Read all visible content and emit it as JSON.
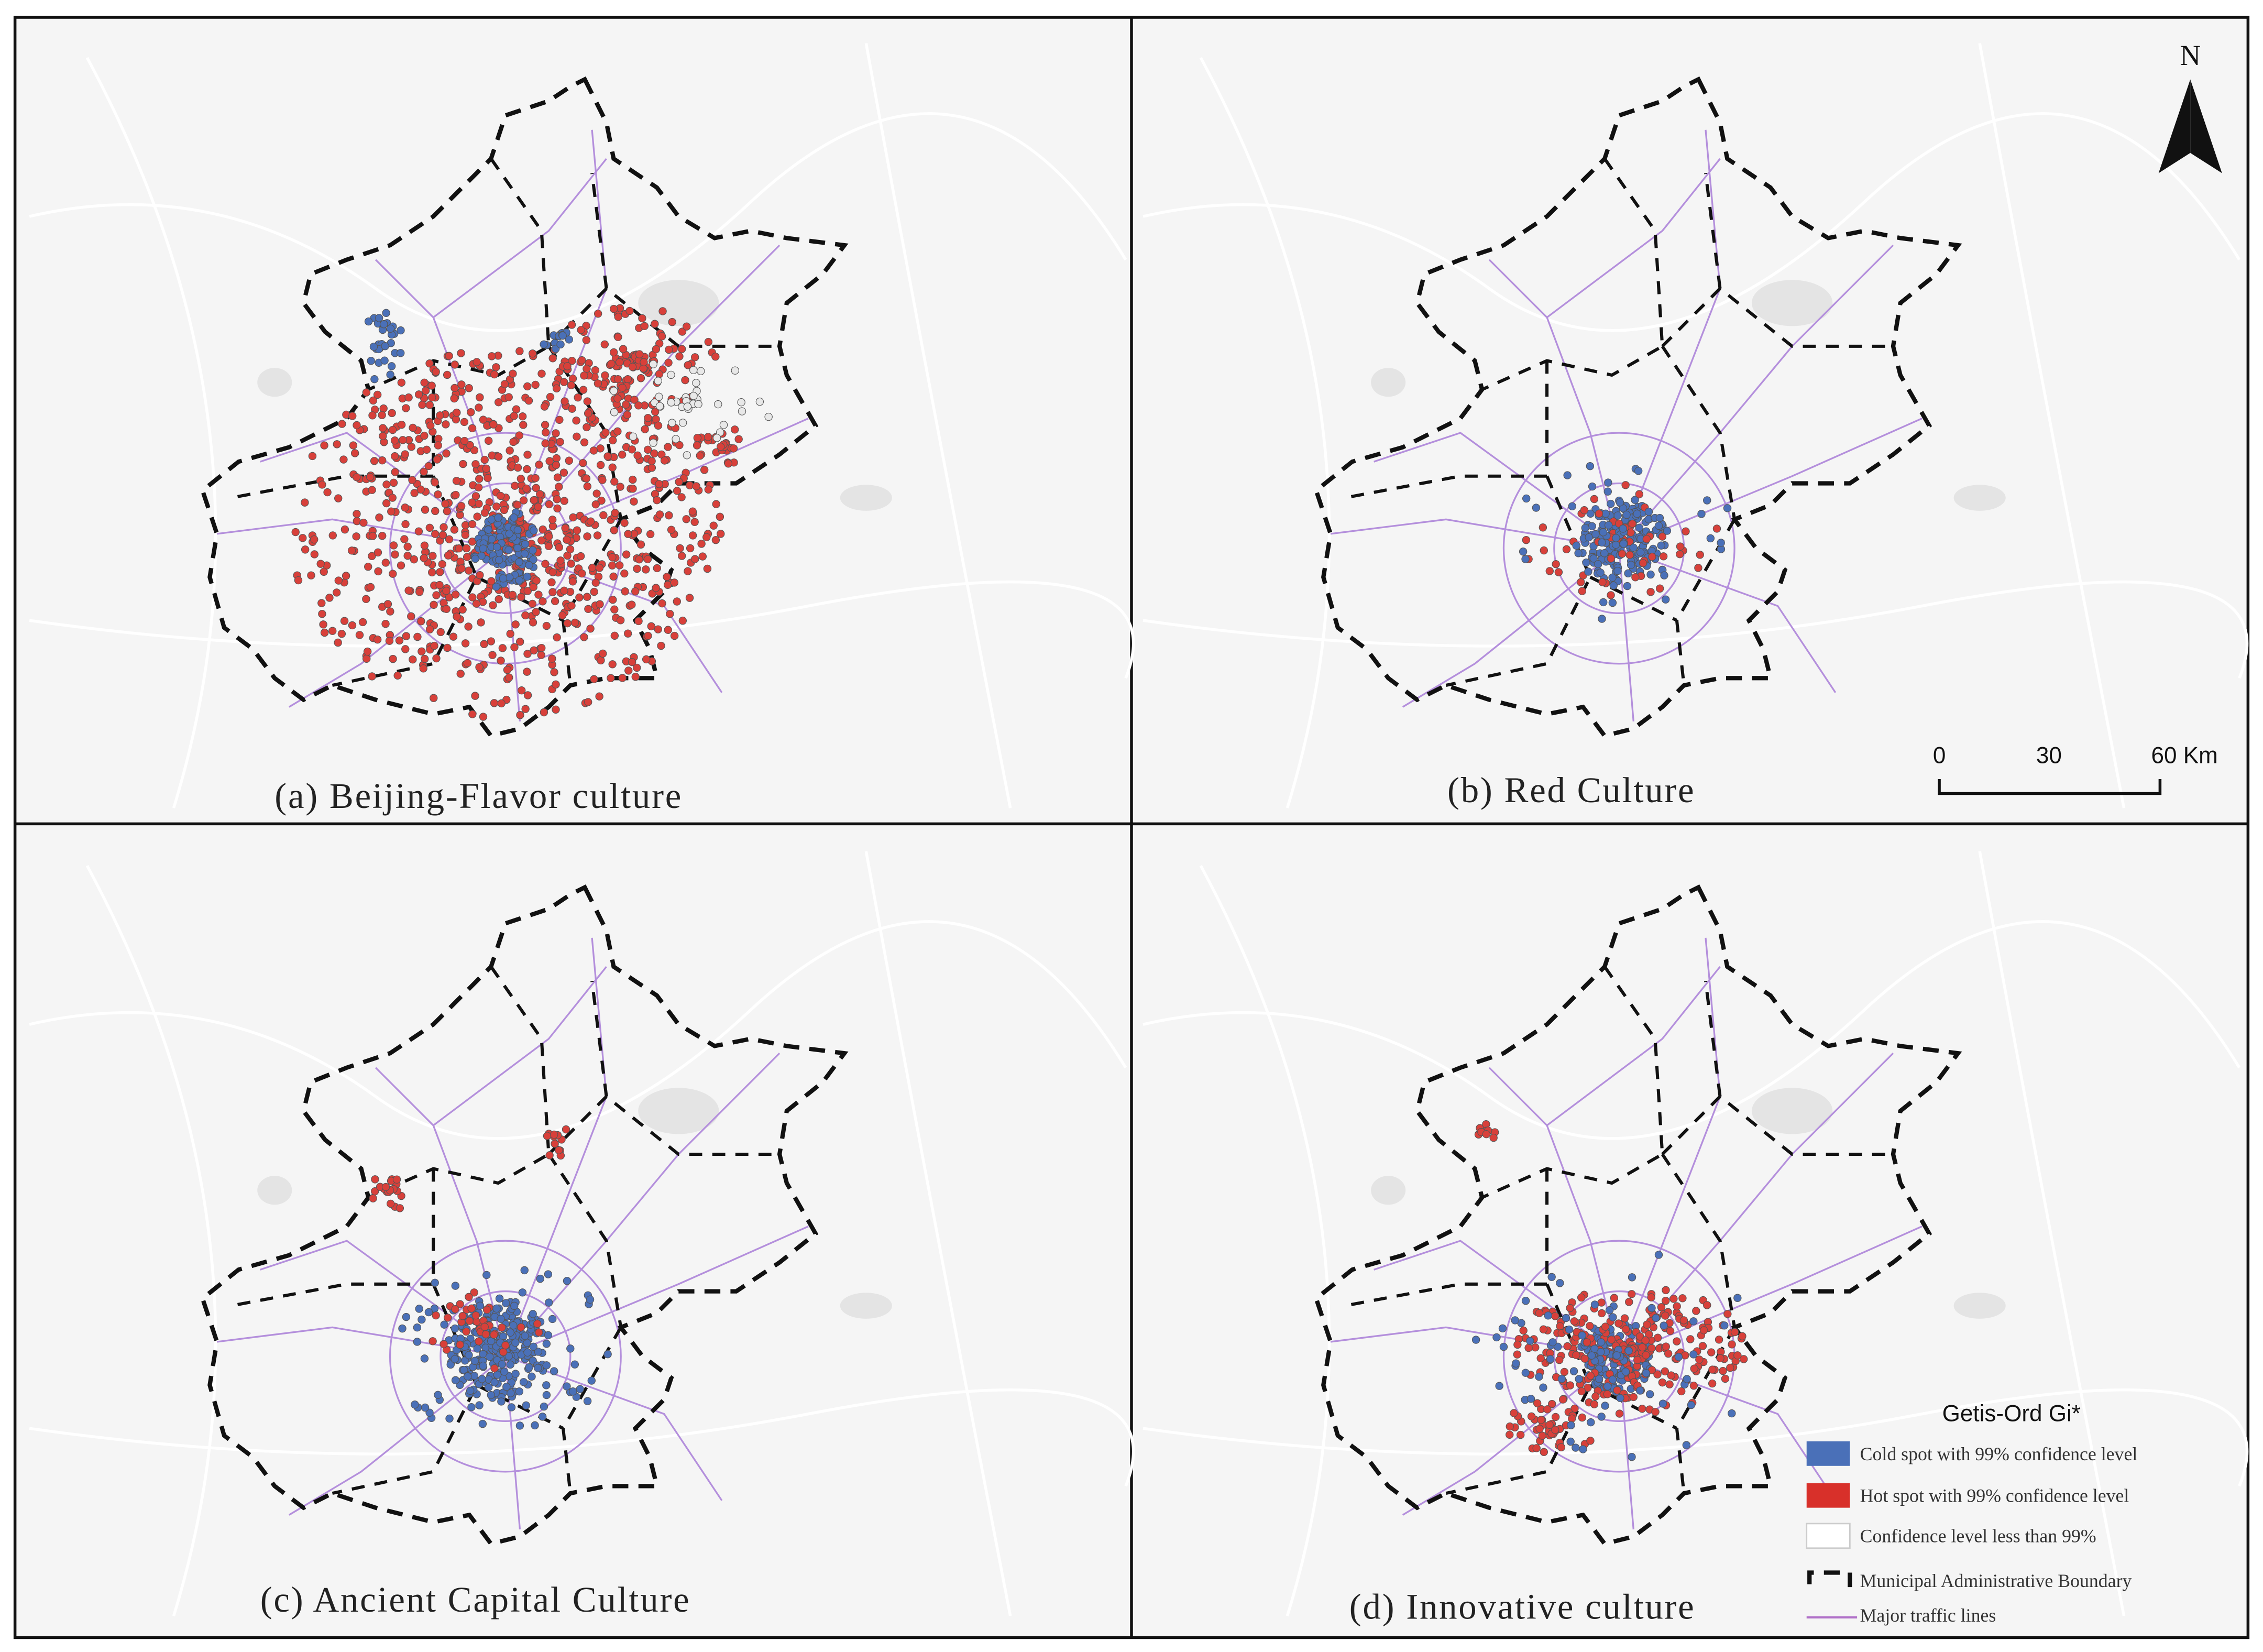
{
  "panels": [
    {
      "label": "(a) Beijing-Flavor culture"
    },
    {
      "label": "(b) Red Culture"
    },
    {
      "label": "(c) Ancient Capital Culture"
    },
    {
      "label": "(d) Innovative culture"
    }
  ],
  "north_arrow": {
    "label": "N"
  },
  "scale_bar": {
    "labels": [
      "0",
      "30",
      "60 Km"
    ]
  },
  "legend": {
    "title": "Getis-Ord Gi*",
    "items": [
      {
        "label": "Cold spot with 99% confidence level"
      },
      {
        "label": "Hot spot with 99% confidence level"
      },
      {
        "label": "Confidence level less than 99%"
      },
      {
        "label": "Municipal Administrative Boundary"
      },
      {
        "label": "Major traffic lines"
      }
    ]
  }
}
